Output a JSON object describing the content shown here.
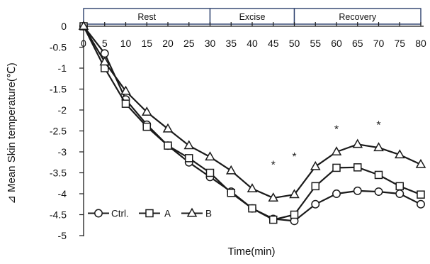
{
  "chart_data": {
    "type": "line",
    "title": "",
    "xlabel": "Time(min)",
    "ylabel": "⊿ Mean Skin temperature(℃)",
    "x": [
      0,
      5,
      10,
      15,
      20,
      25,
      30,
      35,
      40,
      45,
      50,
      55,
      60,
      65,
      70,
      75,
      80
    ],
    "x_tick_labels": [
      "0",
      "5",
      "10",
      "15",
      "20",
      "25",
      "30",
      "35",
      "40",
      "45",
      "50",
      "55",
      "60",
      "65",
      "70",
      "75",
      "80"
    ],
    "xlim": [
      0,
      80
    ],
    "ylim": [
      -5,
      0
    ],
    "y_ticks": [
      0,
      -0.5,
      -1,
      -1.5,
      -2,
      -2.5,
      -3,
      -3.5,
      -4,
      -4.5,
      -5
    ],
    "y_tick_labels": [
      "0",
      "-0.5",
      "-1",
      "-1.5",
      "-2",
      "-2.5",
      "-3",
      "-3.5",
      "-4",
      "-4.5",
      "-5"
    ],
    "series": [
      {
        "name": "Ctrl.",
        "marker": "circle",
        "values": [
          0,
          -0.65,
          -1.75,
          -2.35,
          -2.85,
          -3.25,
          -3.6,
          -3.95,
          -4.35,
          -4.6,
          -4.65,
          -4.25,
          -4.0,
          -3.93,
          -3.95,
          -4.0,
          -4.25
        ]
      },
      {
        "name": "A",
        "marker": "square",
        "values": [
          0,
          -1.0,
          -1.85,
          -2.4,
          -2.85,
          -3.15,
          -3.5,
          -3.98,
          -4.35,
          -4.62,
          -4.5,
          -3.82,
          -3.38,
          -3.37,
          -3.55,
          -3.82,
          -4.02
        ]
      },
      {
        "name": "B",
        "marker": "triangle",
        "values": [
          0,
          -0.85,
          -1.55,
          -2.05,
          -2.45,
          -2.85,
          -3.12,
          -3.45,
          -3.88,
          -4.1,
          -4.02,
          -3.35,
          -3.0,
          -2.82,
          -2.9,
          -3.07,
          -3.3
        ]
      }
    ],
    "phases": [
      {
        "label": "Rest",
        "x_start": 0,
        "x_end": 30
      },
      {
        "label": "Excise",
        "x_start": 30,
        "x_end": 50
      },
      {
        "label": "Recovery",
        "x_start": 50,
        "x_end": 80
      }
    ],
    "annotations": [
      {
        "text": "*",
        "x": 45,
        "y": -3.3
      },
      {
        "text": "*",
        "x": 50,
        "y": -3.1
      },
      {
        "text": "*",
        "x": 60,
        "y": -2.45
      },
      {
        "text": "*",
        "x": 70,
        "y": -2.35
      }
    ],
    "legend_position": "bottom-left",
    "grid": false,
    "colors": {
      "line": "#1a1a1a",
      "marker_fill": "#ffffff",
      "phase_border": "#2b3f6b"
    }
  }
}
